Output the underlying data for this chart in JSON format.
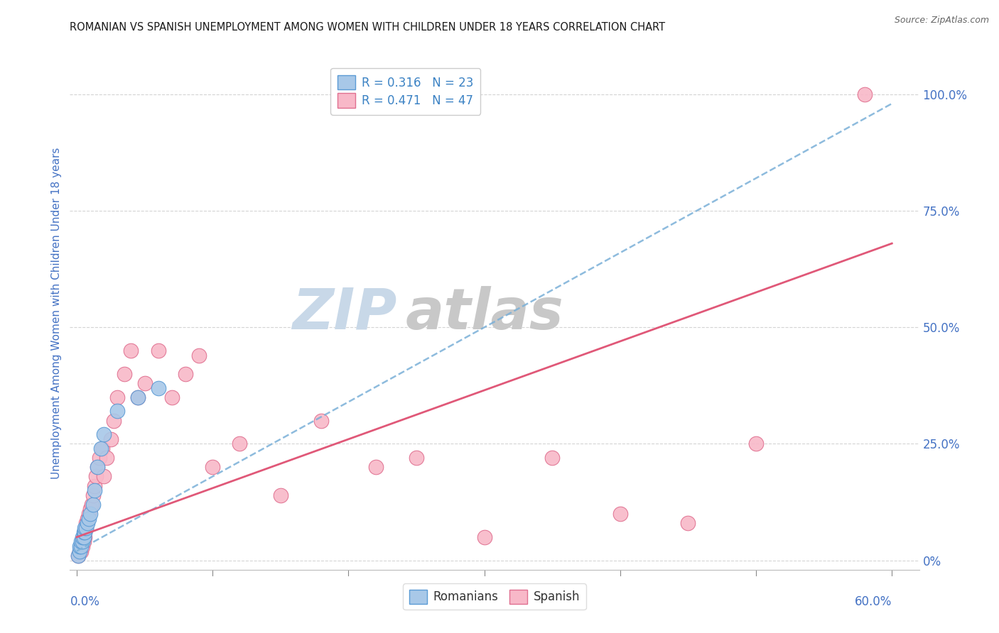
{
  "title": "ROMANIAN VS SPANISH UNEMPLOYMENT AMONG WOMEN WITH CHILDREN UNDER 18 YEARS CORRELATION CHART",
  "source": "Source: ZipAtlas.com",
  "ylabel": "Unemployment Among Women with Children Under 18 years",
  "ytick_labels": [
    "0%",
    "25.0%",
    "50.0%",
    "75.0%",
    "100.0%"
  ],
  "ytick_values": [
    0.0,
    0.25,
    0.5,
    0.75,
    1.0
  ],
  "xlim": [
    0.0,
    0.6
  ],
  "ylim": [
    0.0,
    1.05
  ],
  "watermark_zip": "ZIP",
  "watermark_atlas": "atlas",
  "title_color": "#1a1a1a",
  "source_color": "#666666",
  "axis_label_color": "#4472c4",
  "tick_color": "#4472c4",
  "grid_color": "#d0d0d0",
  "watermark_zip_color": "#c8d8e8",
  "watermark_atlas_color": "#c8c8c8",
  "background_color": "#ffffff",
  "romanian_dot_color": "#a8c8e8",
  "romanian_dot_edge": "#5b9bd5",
  "spanish_dot_color": "#f8b8c8",
  "spanish_dot_edge": "#e07090",
  "romanian_line_color": "#7ab0d8",
  "romanian_line_style": "--",
  "spanish_line_color": "#e05878",
  "spanish_line_style": "-",
  "R_romanian": 0.316,
  "N_romanian": 23,
  "R_spanish": 0.471,
  "N_spanish": 47,
  "romanian_x": [
    0.001,
    0.002,
    0.002,
    0.003,
    0.003,
    0.004,
    0.004,
    0.005,
    0.005,
    0.006,
    0.006,
    0.007,
    0.008,
    0.009,
    0.01,
    0.012,
    0.013,
    0.015,
    0.018,
    0.02,
    0.03,
    0.045,
    0.06
  ],
  "romanian_y": [
    0.01,
    0.02,
    0.03,
    0.03,
    0.04,
    0.04,
    0.05,
    0.05,
    0.06,
    0.06,
    0.07,
    0.07,
    0.08,
    0.09,
    0.1,
    0.12,
    0.15,
    0.2,
    0.24,
    0.27,
    0.32,
    0.35,
    0.37
  ],
  "spanish_x": [
    0.001,
    0.002,
    0.003,
    0.003,
    0.004,
    0.004,
    0.005,
    0.005,
    0.006,
    0.006,
    0.007,
    0.007,
    0.008,
    0.009,
    0.01,
    0.011,
    0.012,
    0.013,
    0.014,
    0.015,
    0.017,
    0.019,
    0.02,
    0.022,
    0.025,
    0.027,
    0.03,
    0.035,
    0.04,
    0.045,
    0.05,
    0.06,
    0.07,
    0.08,
    0.09,
    0.1,
    0.12,
    0.15,
    0.18,
    0.22,
    0.25,
    0.3,
    0.35,
    0.4,
    0.45,
    0.5,
    0.58
  ],
  "spanish_y": [
    0.01,
    0.02,
    0.02,
    0.03,
    0.03,
    0.04,
    0.04,
    0.05,
    0.05,
    0.06,
    0.07,
    0.08,
    0.09,
    0.1,
    0.11,
    0.12,
    0.14,
    0.16,
    0.18,
    0.2,
    0.22,
    0.24,
    0.18,
    0.22,
    0.26,
    0.3,
    0.35,
    0.4,
    0.45,
    0.35,
    0.38,
    0.45,
    0.35,
    0.4,
    0.44,
    0.2,
    0.25,
    0.14,
    0.3,
    0.2,
    0.22,
    0.05,
    0.22,
    0.1,
    0.08,
    0.25,
    1.0
  ],
  "rom_line_slope": 1.6,
  "rom_line_intercept": 0.02,
  "spa_line_slope": 1.05,
  "spa_line_intercept": 0.05
}
